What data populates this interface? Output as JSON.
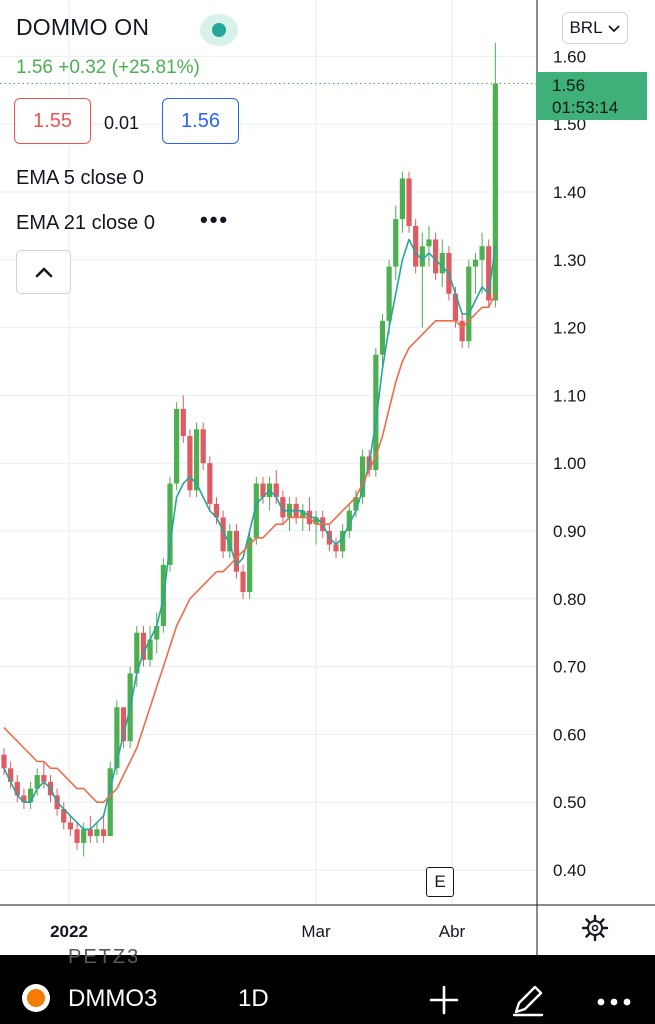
{
  "header": {
    "symbol_name": "DOMMO ON",
    "price_line": "1.56  +0.32  (+25.81%)",
    "bid": "1.55",
    "spread": "0.01",
    "ask": "1.56",
    "indicators": [
      "EMA 5 close 0",
      "EMA 21 close 0"
    ],
    "more": "•••",
    "collapse_icon": "chevron-up-icon"
  },
  "currency_button": "BRL",
  "last_price_tag": {
    "price": "1.56",
    "countdown": "01:53:14"
  },
  "event_marker": "E",
  "bottom_bar": {
    "ticker": "DMMO3",
    "interval": "1D",
    "faint_text": "PETZ3",
    "icons": [
      "logo-icon",
      "plus-icon",
      "pencil-icon",
      "more-icon"
    ]
  },
  "colors": {
    "up": "#4caf50",
    "down": "#e05a63",
    "ema5": "#26a69a",
    "ema21": "#ef6c4a",
    "grid": "#e6eef5",
    "tag": "#3fb079"
  },
  "chart_data": {
    "type": "candlestick",
    "x_tick_labels": [
      "2022",
      "Mar",
      "Abr"
    ],
    "y_tick_labels": [
      "1.60",
      "1.50",
      "1.40",
      "1.30",
      "1.20",
      "1.10",
      "1.00",
      "0.90",
      "0.80",
      "0.70",
      "0.60",
      "0.50",
      "0.40"
    ],
    "y_range": [
      0.4,
      1.6
    ],
    "series": [
      {
        "name": "EMA 5 close 0",
        "values": [
          0.55,
          0.53,
          0.51,
          0.5,
          0.5,
          0.52,
          0.53,
          0.52,
          0.5,
          0.49,
          0.48,
          0.47,
          0.46,
          0.46,
          0.47,
          0.48,
          0.52,
          0.56,
          0.6,
          0.64,
          0.69,
          0.72,
          0.74,
          0.76,
          0.8,
          0.88,
          0.95,
          0.97,
          0.98,
          0.97,
          0.95,
          0.93,
          0.92,
          0.9,
          0.88,
          0.85,
          0.86,
          0.9,
          0.94,
          0.95,
          0.96,
          0.95,
          0.93,
          0.93,
          0.93,
          0.93,
          0.92,
          0.92,
          0.91,
          0.89,
          0.88,
          0.89,
          0.91,
          0.93,
          0.96,
          1.0,
          1.06,
          1.14,
          1.2,
          1.25,
          1.3,
          1.33,
          1.31,
          1.3,
          1.31,
          1.3,
          1.29,
          1.28,
          1.25,
          1.22,
          1.22,
          1.24,
          1.26,
          1.25,
          1.32
        ]
      },
      {
        "name": "EMA 21 close 0",
        "values": [
          0.61,
          0.6,
          0.59,
          0.58,
          0.57,
          0.56,
          0.56,
          0.55,
          0.55,
          0.54,
          0.53,
          0.52,
          0.52,
          0.51,
          0.5,
          0.5,
          0.51,
          0.52,
          0.54,
          0.56,
          0.58,
          0.61,
          0.64,
          0.67,
          0.7,
          0.73,
          0.76,
          0.78,
          0.8,
          0.81,
          0.82,
          0.83,
          0.84,
          0.84,
          0.85,
          0.86,
          0.87,
          0.88,
          0.89,
          0.89,
          0.9,
          0.91,
          0.91,
          0.92,
          0.92,
          0.92,
          0.92,
          0.91,
          0.91,
          0.91,
          0.92,
          0.93,
          0.94,
          0.95,
          0.97,
          0.99,
          1.01,
          1.04,
          1.08,
          1.12,
          1.15,
          1.17,
          1.18,
          1.19,
          1.2,
          1.21,
          1.21,
          1.21,
          1.21,
          1.2,
          1.21,
          1.22,
          1.23,
          1.23,
          1.25
        ]
      },
      {
        "name": "OHLC",
        "candles": [
          [
            0.57,
            0.58,
            0.54,
            0.55
          ],
          [
            0.55,
            0.56,
            0.52,
            0.53
          ],
          [
            0.53,
            0.54,
            0.5,
            0.51
          ],
          [
            0.51,
            0.52,
            0.49,
            0.5
          ],
          [
            0.5,
            0.53,
            0.49,
            0.52
          ],
          [
            0.52,
            0.55,
            0.51,
            0.54
          ],
          [
            0.54,
            0.56,
            0.52,
            0.53
          ],
          [
            0.53,
            0.54,
            0.5,
            0.51
          ],
          [
            0.51,
            0.52,
            0.48,
            0.49
          ],
          [
            0.49,
            0.5,
            0.46,
            0.47
          ],
          [
            0.47,
            0.48,
            0.45,
            0.46
          ],
          [
            0.46,
            0.47,
            0.43,
            0.44
          ],
          [
            0.44,
            0.47,
            0.42,
            0.46
          ],
          [
            0.46,
            0.48,
            0.44,
            0.45
          ],
          [
            0.45,
            0.47,
            0.44,
            0.46
          ],
          [
            0.46,
            0.48,
            0.44,
            0.45
          ],
          [
            0.45,
            0.56,
            0.45,
            0.55
          ],
          [
            0.55,
            0.65,
            0.54,
            0.64
          ],
          [
            0.64,
            0.64,
            0.58,
            0.59
          ],
          [
            0.59,
            0.7,
            0.58,
            0.69
          ],
          [
            0.69,
            0.76,
            0.67,
            0.75
          ],
          [
            0.75,
            0.76,
            0.7,
            0.71
          ],
          [
            0.71,
            0.76,
            0.7,
            0.74
          ],
          [
            0.74,
            0.78,
            0.72,
            0.76
          ],
          [
            0.76,
            0.86,
            0.75,
            0.85
          ],
          [
            0.85,
            0.98,
            0.84,
            0.97
          ],
          [
            0.97,
            1.09,
            0.96,
            1.08
          ],
          [
            1.08,
            1.1,
            1.03,
            1.04
          ],
          [
            1.04,
            1.05,
            0.95,
            0.96
          ],
          [
            0.96,
            1.06,
            0.95,
            1.05
          ],
          [
            1.05,
            1.06,
            0.99,
            1.0
          ],
          [
            1.0,
            1.01,
            0.93,
            0.94
          ],
          [
            0.94,
            0.95,
            0.91,
            0.92
          ],
          [
            0.92,
            0.93,
            0.86,
            0.87
          ],
          [
            0.87,
            0.91,
            0.86,
            0.9
          ],
          [
            0.9,
            0.91,
            0.83,
            0.84
          ],
          [
            0.84,
            0.85,
            0.8,
            0.81
          ],
          [
            0.81,
            0.9,
            0.8,
            0.89
          ],
          [
            0.89,
            0.98,
            0.88,
            0.97
          ],
          [
            0.97,
            0.98,
            0.94,
            0.95
          ],
          [
            0.95,
            0.98,
            0.93,
            0.97
          ],
          [
            0.97,
            0.99,
            0.94,
            0.95
          ],
          [
            0.95,
            0.96,
            0.91,
            0.92
          ],
          [
            0.92,
            0.95,
            0.9,
            0.94
          ],
          [
            0.94,
            0.95,
            0.91,
            0.92
          ],
          [
            0.92,
            0.94,
            0.9,
            0.93
          ],
          [
            0.93,
            0.95,
            0.9,
            0.91
          ],
          [
            0.91,
            0.93,
            0.88,
            0.92
          ],
          [
            0.92,
            0.93,
            0.89,
            0.9
          ],
          [
            0.9,
            0.91,
            0.87,
            0.88
          ],
          [
            0.88,
            0.89,
            0.86,
            0.87
          ],
          [
            0.87,
            0.91,
            0.86,
            0.9
          ],
          [
            0.9,
            0.94,
            0.89,
            0.93
          ],
          [
            0.93,
            0.96,
            0.92,
            0.95
          ],
          [
            0.95,
            1.02,
            0.94,
            1.01
          ],
          [
            1.01,
            1.02,
            0.98,
            0.99
          ],
          [
            0.99,
            1.17,
            0.98,
            1.16
          ],
          [
            1.16,
            1.22,
            1.14,
            1.21
          ],
          [
            1.21,
            1.3,
            1.19,
            1.29
          ],
          [
            1.29,
            1.38,
            1.27,
            1.36
          ],
          [
            1.36,
            1.43,
            1.34,
            1.42
          ],
          [
            1.42,
            1.43,
            1.34,
            1.35
          ],
          [
            1.35,
            1.36,
            1.28,
            1.29
          ],
          [
            1.29,
            1.34,
            1.2,
            1.32
          ],
          [
            1.32,
            1.35,
            1.29,
            1.33
          ],
          [
            1.33,
            1.34,
            1.27,
            1.28
          ],
          [
            1.28,
            1.33,
            1.26,
            1.31
          ],
          [
            1.31,
            1.32,
            1.24,
            1.25
          ],
          [
            1.25,
            1.26,
            1.2,
            1.21
          ],
          [
            1.21,
            1.22,
            1.17,
            1.18
          ],
          [
            1.18,
            1.3,
            1.17,
            1.29
          ],
          [
            1.29,
            1.31,
            1.25,
            1.3
          ],
          [
            1.3,
            1.34,
            1.25,
            1.32
          ],
          [
            1.32,
            1.33,
            1.23,
            1.24
          ],
          [
            1.24,
            1.62,
            1.23,
            1.56
          ]
        ]
      }
    ]
  }
}
